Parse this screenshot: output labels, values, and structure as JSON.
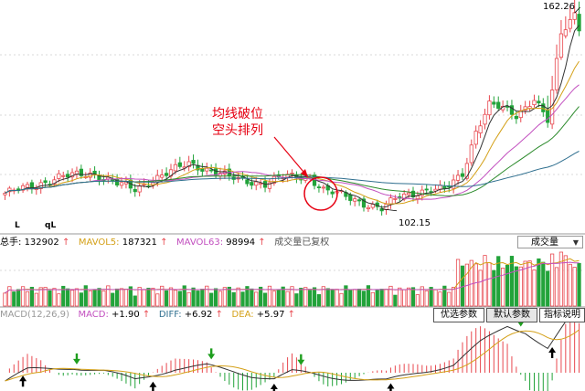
{
  "price_panel": {
    "high_label": "162.26",
    "low_label": "102.15",
    "annotation": [
      "均线破位",
      "空头排列"
    ],
    "corner_marks": [
      "L",
      "qL"
    ]
  },
  "volume_panel": {
    "legend": {
      "total": {
        "label": "总手:",
        "value": "132902",
        "arrow": "↑"
      },
      "mavol5": {
        "label": "MAVOL5:",
        "value": "187321",
        "arrow": "↑"
      },
      "mavol63": {
        "label": "MAVOL63:",
        "value": "98994",
        "arrow": "↑"
      },
      "note": "成交量已复权"
    },
    "selector_value": "成交量"
  },
  "macd_panel": {
    "legend": {
      "name": "MACD(12,26,9)",
      "macd": {
        "label": "MACD:",
        "value": "+1.90",
        "arrow": "↑"
      },
      "diff": {
        "label": "DIFF:",
        "value": "+6.92",
        "arrow": "↑"
      },
      "dea": {
        "label": "DEA:",
        "value": "+5.97",
        "arrow": "↑"
      }
    },
    "buttons": [
      "优选参数",
      "默认参数",
      "指标说明"
    ],
    "active_button": 1
  },
  "colors": {
    "up": "#e8484f",
    "down": "#22a33a",
    "grid": "#d9d9d9",
    "annotation": "#e60012",
    "ma5": "#333333",
    "ma10": "#d4a017",
    "ma20": "#c24fbf",
    "ma30": "#2b8a2b",
    "ma60": "#2f6f8f",
    "arrow_buy": "#000000",
    "arrow_sell": "#1e9e1e"
  },
  "chart_data": {
    "type": "candlestick",
    "price_axis": {
      "min": 102.15,
      "max": 162.26
    },
    "price_anchors": [
      {
        "i": 0,
        "p": 107
      },
      {
        "i": 6,
        "p": 109
      },
      {
        "i": 12,
        "p": 112
      },
      {
        "i": 20,
        "p": 113
      },
      {
        "i": 25,
        "p": 110
      },
      {
        "i": 29,
        "p": 108
      },
      {
        "i": 34,
        "p": 112
      },
      {
        "i": 41,
        "p": 116
      },
      {
        "i": 46,
        "p": 114
      },
      {
        "i": 52,
        "p": 111
      },
      {
        "i": 58,
        "p": 110
      },
      {
        "i": 62,
        "p": 112
      },
      {
        "i": 68,
        "p": 112
      },
      {
        "i": 71,
        "p": 108
      },
      {
        "i": 76,
        "p": 106
      },
      {
        "i": 80,
        "p": 104
      },
      {
        "i": 84,
        "p": 102.15
      },
      {
        "i": 88,
        "p": 106
      },
      {
        "i": 94,
        "p": 108
      },
      {
        "i": 98,
        "p": 108
      },
      {
        "i": 102,
        "p": 113
      },
      {
        "i": 105,
        "p": 126
      },
      {
        "i": 108,
        "p": 134
      },
      {
        "i": 111,
        "p": 133
      },
      {
        "i": 114,
        "p": 131
      },
      {
        "i": 118,
        "p": 136
      },
      {
        "i": 121,
        "p": 129
      },
      {
        "i": 124,
        "p": 156
      },
      {
        "i": 127,
        "p": 162.26
      },
      {
        "i": 128,
        "p": 158
      }
    ],
    "macd_anchors": [
      {
        "i": 0,
        "v": -0.6
      },
      {
        "i": 5,
        "v": 0.2
      },
      {
        "i": 15,
        "v": 0.4
      },
      {
        "i": 22,
        "v": 0.1
      },
      {
        "i": 29,
        "v": -0.5
      },
      {
        "i": 38,
        "v": 0.3
      },
      {
        "i": 45,
        "v": 0.5
      },
      {
        "i": 55,
        "v": -0.2
      },
      {
        "i": 60,
        "v": -0.4
      },
      {
        "i": 64,
        "v": 0.1
      },
      {
        "i": 72,
        "v": -0.3
      },
      {
        "i": 85,
        "v": -0.6
      },
      {
        "i": 92,
        "v": 0.0
      },
      {
        "i": 100,
        "v": 0.6
      },
      {
        "i": 106,
        "v": 2.2
      },
      {
        "i": 112,
        "v": 3.4
      },
      {
        "i": 116,
        "v": 3.0
      },
      {
        "i": 121,
        "v": 1.8
      },
      {
        "i": 125,
        "v": 3.6
      },
      {
        "i": 128,
        "v": 4.2
      }
    ],
    "buy_arrow_bars": [
      4,
      33,
      60,
      86,
      122
    ],
    "sell_arrow_bars": [
      16,
      46,
      66,
      115,
      126
    ]
  }
}
